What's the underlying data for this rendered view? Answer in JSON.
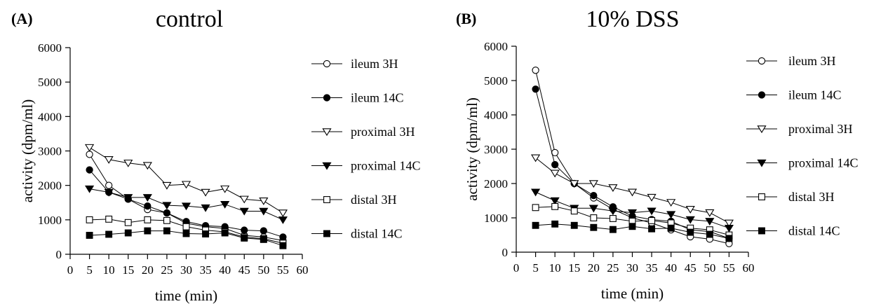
{
  "chart_data": [
    {
      "type": "line",
      "panel_label": "(A)",
      "title": "control",
      "xlabel": "time (min)",
      "ylabel": "activity (dpm/ml)",
      "xlim": [
        0,
        60
      ],
      "ylim": [
        0,
        6000
      ],
      "xticks": [
        0,
        5,
        10,
        15,
        20,
        25,
        30,
        35,
        40,
        45,
        50,
        55,
        60
      ],
      "yticks": [
        0,
        1000,
        2000,
        3000,
        4000,
        5000,
        6000
      ],
      "grid": false,
      "legend_position": "right",
      "x": [
        5,
        10,
        15,
        20,
        25,
        30,
        35,
        40,
        45,
        50,
        55
      ],
      "series": [
        {
          "name": "ileum 3H",
          "marker": "circle-open",
          "values": [
            2900,
            2000,
            1600,
            1300,
            1200,
            900,
            800,
            750,
            550,
            500,
            400
          ]
        },
        {
          "name": "ileum 14C",
          "marker": "circle-filled",
          "values": [
            2450,
            1800,
            1600,
            1400,
            1200,
            950,
            830,
            800,
            700,
            680,
            500
          ]
        },
        {
          "name": "proximal 3H",
          "marker": "triangle-open",
          "values": [
            3100,
            2750,
            2650,
            2580,
            2000,
            2030,
            1800,
            1900,
            1600,
            1550,
            1200
          ]
        },
        {
          "name": "proximal 14C",
          "marker": "triangle-filled",
          "values": [
            1900,
            1800,
            1650,
            1650,
            1420,
            1400,
            1350,
            1450,
            1250,
            1250,
            1000
          ]
        },
        {
          "name": "distal 3H",
          "marker": "square-open",
          "values": [
            1000,
            1020,
            920,
            1000,
            980,
            800,
            700,
            650,
            500,
            450,
            320
          ]
        },
        {
          "name": "distal 14C",
          "marker": "square-filled",
          "values": [
            550,
            580,
            620,
            680,
            680,
            600,
            590,
            620,
            470,
            430,
            250
          ]
        }
      ]
    },
    {
      "type": "line",
      "panel_label": "(B)",
      "title": "10% DSS",
      "xlabel": "time (min)",
      "ylabel": "activity (dpm/ml)",
      "xlim": [
        0,
        60
      ],
      "ylim": [
        0,
        6000
      ],
      "xticks": [
        0,
        5,
        10,
        15,
        20,
        25,
        30,
        35,
        40,
        45,
        50,
        55,
        60
      ],
      "yticks": [
        0,
        1000,
        2000,
        3000,
        4000,
        5000,
        6000
      ],
      "grid": false,
      "legend_position": "right",
      "x": [
        5,
        10,
        15,
        20,
        25,
        30,
        35,
        40,
        45,
        50,
        55
      ],
      "series": [
        {
          "name": "ileum 3H",
          "marker": "circle-open",
          "values": [
            5300,
            2900,
            2000,
            1580,
            1250,
            1000,
            850,
            650,
            450,
            380,
            250
          ]
        },
        {
          "name": "ileum 14C",
          "marker": "circle-filled",
          "values": [
            4750,
            2550,
            2000,
            1650,
            1320,
            1050,
            950,
            900,
            650,
            600,
            400
          ]
        },
        {
          "name": "proximal 3H",
          "marker": "triangle-open",
          "values": [
            2750,
            2300,
            2000,
            2000,
            1880,
            1750,
            1600,
            1450,
            1250,
            1150,
            850
          ]
        },
        {
          "name": "proximal 14C",
          "marker": "triangle-filled",
          "values": [
            1750,
            1500,
            1280,
            1280,
            1200,
            1150,
            1200,
            1100,
            950,
            900,
            700
          ]
        },
        {
          "name": "distal 3H",
          "marker": "square-open",
          "values": [
            1300,
            1330,
            1200,
            1000,
            980,
            900,
            920,
            850,
            700,
            650,
            500
          ]
        },
        {
          "name": "distal 14C",
          "marker": "square-filled",
          "values": [
            780,
            820,
            780,
            720,
            660,
            750,
            680,
            700,
            580,
            520,
            400
          ]
        }
      ]
    }
  ]
}
